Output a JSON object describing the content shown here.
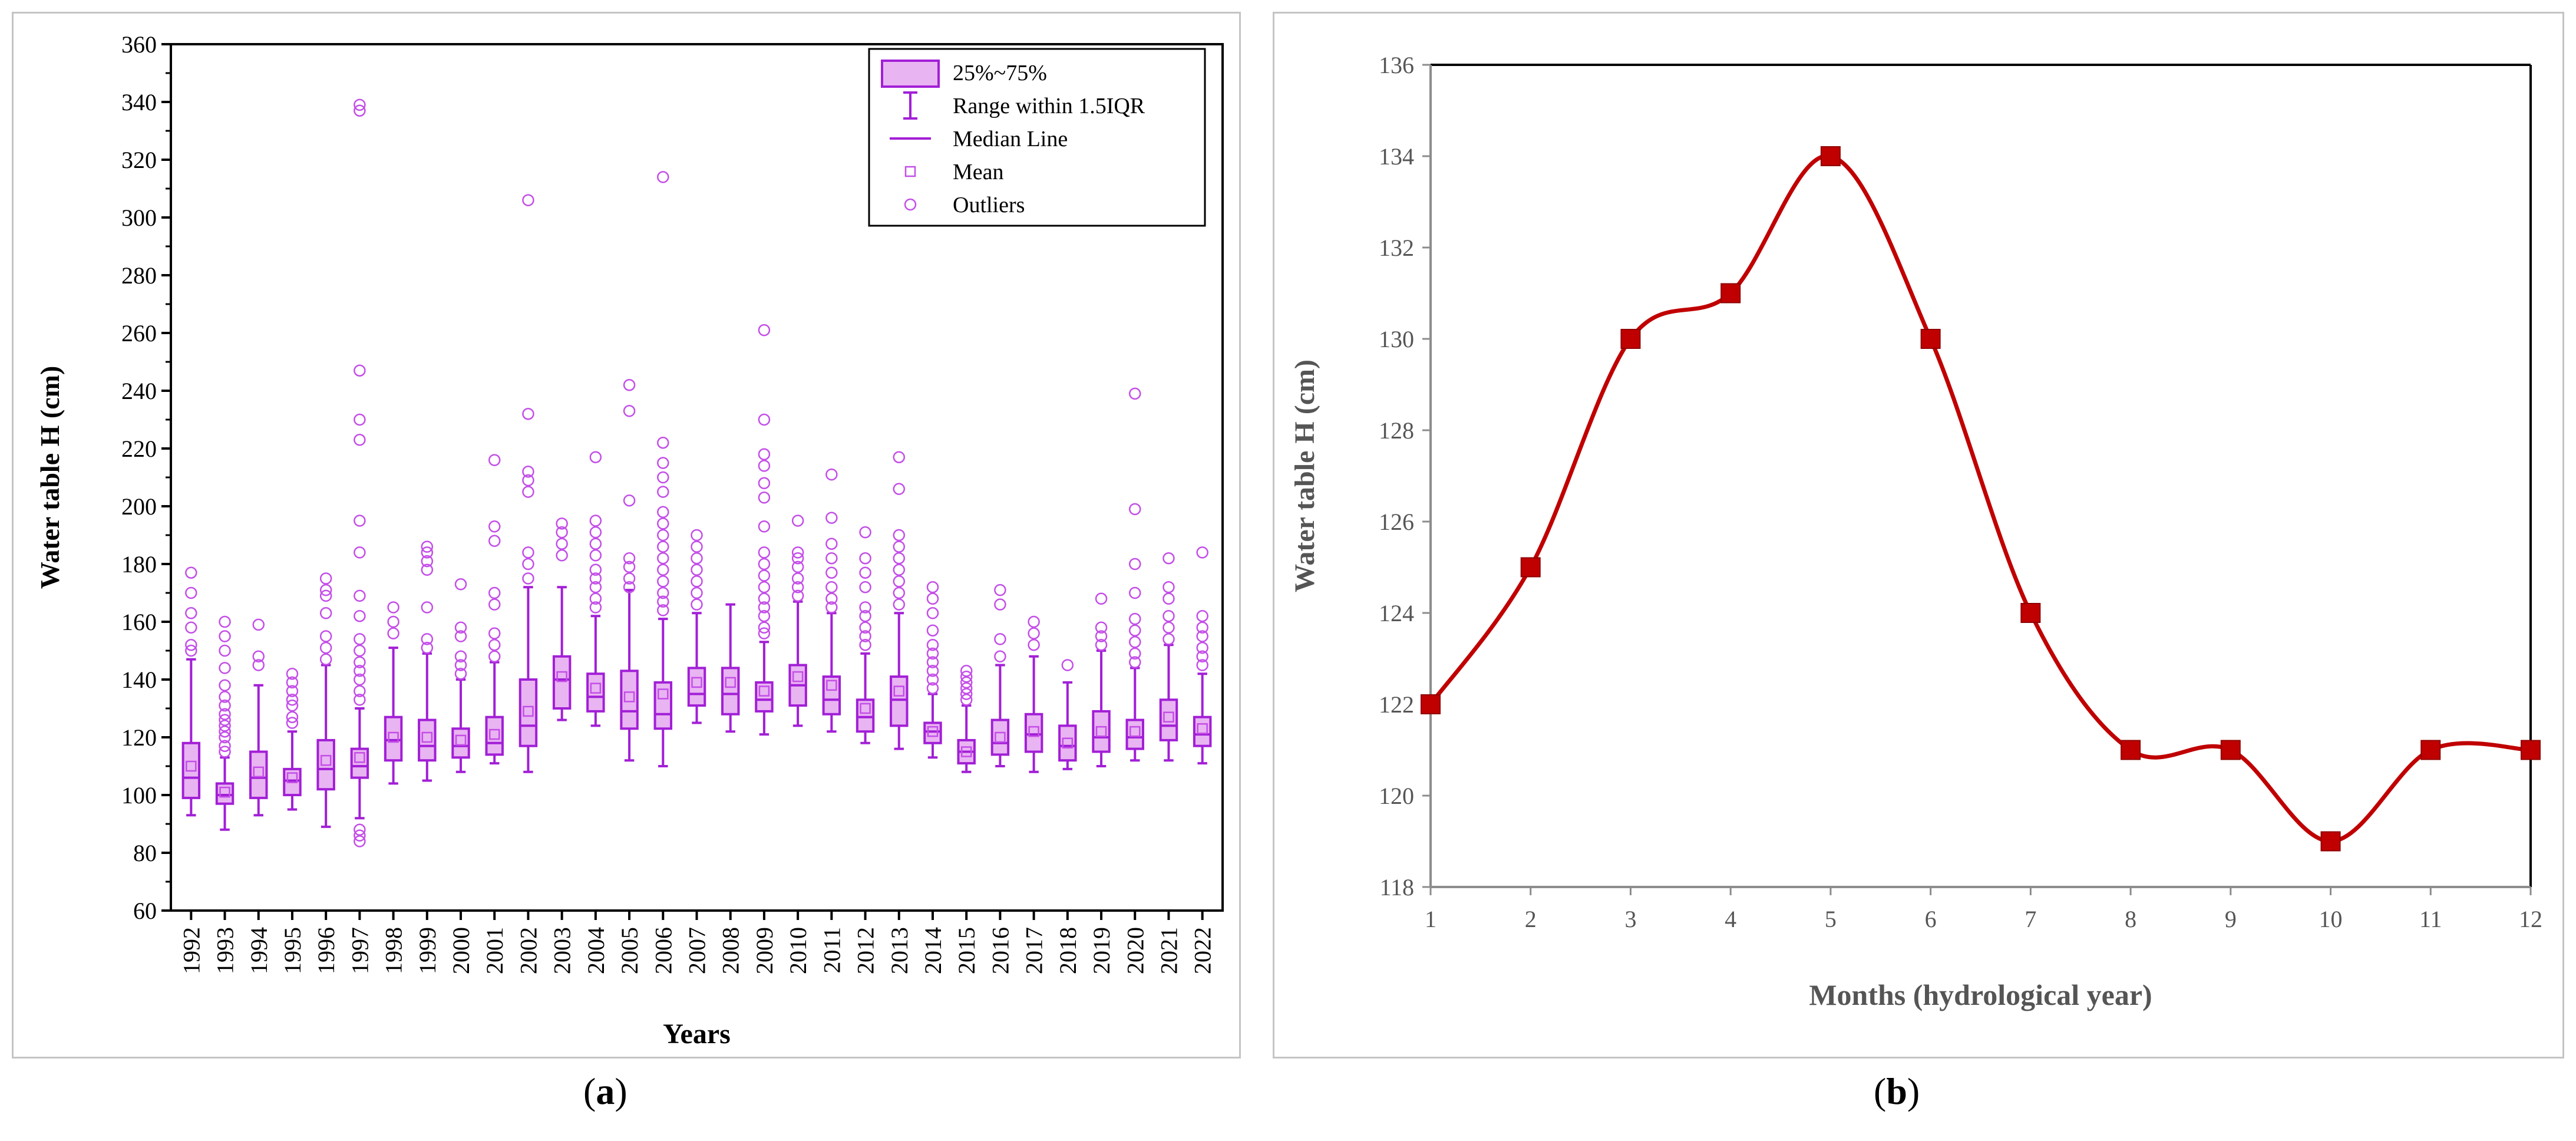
{
  "chart_data": [
    {
      "panel_label": "(a)",
      "type": "box",
      "xlabel": "Years",
      "ylabel": "Water table H (cm)",
      "ylim": [
        60,
        360
      ],
      "yticks": [
        60,
        80,
        100,
        120,
        140,
        160,
        180,
        200,
        220,
        240,
        260,
        280,
        300,
        320,
        340,
        360
      ],
      "colors": {
        "box_fill": "#e9b4f2",
        "box_edge": "#a21fd6",
        "outlier": "#c44ee8"
      },
      "legend": {
        "position": "top-right",
        "entries": [
          "25%~75%",
          "Range within 1.5IQR",
          "Median Line",
          "Mean",
          "Outliers"
        ]
      },
      "categories": [
        "1992",
        "1993",
        "1994",
        "1995",
        "1996",
        "1997",
        "1998",
        "1999",
        "2000",
        "2001",
        "2002",
        "2003",
        "2004",
        "2005",
        "2006",
        "2007",
        "2008",
        "2009",
        "2010",
        "2011",
        "2012",
        "2013",
        "2014",
        "2015",
        "2016",
        "2017",
        "2018",
        "2019",
        "2020",
        "2021",
        "2022"
      ],
      "boxes": [
        {
          "year": "1992",
          "low": 93,
          "q1": 99,
          "median": 106,
          "q3": 118,
          "high": 147,
          "mean": 110,
          "outliers": [
            150,
            152,
            158,
            163,
            170,
            177
          ]
        },
        {
          "year": "1993",
          "low": 88,
          "q1": 97,
          "median": 100,
          "q3": 104,
          "high": 113,
          "mean": 101,
          "outliers": [
            115,
            117,
            120,
            122,
            124,
            126,
            128,
            131,
            134,
            138,
            144,
            150,
            155,
            160
          ]
        },
        {
          "year": "1994",
          "low": 93,
          "q1": 99,
          "median": 106,
          "q3": 115,
          "high": 138,
          "mean": 108,
          "outliers": [
            145,
            148,
            159
          ]
        },
        {
          "year": "1995",
          "low": 95,
          "q1": 100,
          "median": 105,
          "q3": 109,
          "high": 122,
          "mean": 106,
          "outliers": [
            125,
            127,
            131,
            133,
            136,
            139,
            142
          ]
        },
        {
          "year": "1996",
          "low": 89,
          "q1": 102,
          "median": 109,
          "q3": 119,
          "high": 145,
          "mean": 112,
          "outliers": [
            147,
            151,
            155,
            163,
            169,
            171,
            175
          ]
        },
        {
          "year": "1997",
          "low": 92,
          "q1": 106,
          "median": 110,
          "q3": 116,
          "high": 130,
          "mean": 113,
          "outliers": [
            84,
            86,
            88,
            133,
            136,
            140,
            143,
            146,
            150,
            154,
            162,
            169,
            184,
            195,
            223,
            230,
            247,
            337,
            339
          ]
        },
        {
          "year": "1998",
          "low": 104,
          "q1": 112,
          "median": 119,
          "q3": 127,
          "high": 151,
          "mean": 120,
          "outliers": [
            156,
            160,
            165
          ]
        },
        {
          "year": "1999",
          "low": 105,
          "q1": 112,
          "median": 117,
          "q3": 126,
          "high": 149,
          "mean": 120,
          "outliers": [
            151,
            154,
            165,
            178,
            181,
            184,
            186
          ]
        },
        {
          "year": "2000",
          "low": 108,
          "q1": 113,
          "median": 117,
          "q3": 123,
          "high": 140,
          "mean": 119,
          "outliers": [
            142,
            145,
            148,
            155,
            158,
            173
          ]
        },
        {
          "year": "2001",
          "low": 111,
          "q1": 114,
          "median": 118,
          "q3": 127,
          "high": 146,
          "mean": 121,
          "outliers": [
            148,
            152,
            156,
            166,
            170,
            188,
            193,
            216
          ]
        },
        {
          "year": "2002",
          "low": 108,
          "q1": 117,
          "median": 124,
          "q3": 140,
          "high": 172,
          "mean": 129,
          "outliers": [
            175,
            180,
            184,
            205,
            209,
            212,
            232,
            306
          ]
        },
        {
          "year": "2003",
          "low": 126,
          "q1": 130,
          "median": 140,
          "q3": 148,
          "high": 172,
          "mean": 141,
          "outliers": [
            183,
            187,
            191,
            194
          ]
        },
        {
          "year": "2004",
          "low": 124,
          "q1": 129,
          "median": 134,
          "q3": 142,
          "high": 162,
          "mean": 137,
          "outliers": [
            165,
            168,
            172,
            175,
            178,
            183,
            187,
            191,
            195,
            217
          ]
        },
        {
          "year": "2005",
          "low": 112,
          "q1": 123,
          "median": 129,
          "q3": 143,
          "high": 171,
          "mean": 134,
          "outliers": [
            172,
            175,
            179,
            182,
            202,
            233,
            242
          ]
        },
        {
          "year": "2006",
          "low": 110,
          "q1": 123,
          "median": 128,
          "q3": 139,
          "high": 161,
          "mean": 135,
          "outliers": [
            164,
            167,
            170,
            174,
            178,
            182,
            186,
            190,
            194,
            198,
            205,
            210,
            215,
            222,
            314
          ]
        },
        {
          "year": "2007",
          "low": 125,
          "q1": 131,
          "median": 135,
          "q3": 144,
          "high": 163,
          "mean": 139,
          "outliers": [
            166,
            170,
            174,
            178,
            182,
            186,
            190
          ]
        },
        {
          "year": "2008",
          "low": 122,
          "q1": 128,
          "median": 135,
          "q3": 144,
          "high": 166,
          "mean": 139,
          "outliers": []
        },
        {
          "year": "2009",
          "low": 121,
          "q1": 129,
          "median": 133,
          "q3": 139,
          "high": 153,
          "mean": 136,
          "outliers": [
            156,
            158,
            162,
            165,
            168,
            172,
            176,
            180,
            184,
            193,
            203,
            208,
            214,
            218,
            230,
            261
          ]
        },
        {
          "year": "2010",
          "low": 124,
          "q1": 131,
          "median": 138,
          "q3": 145,
          "high": 167,
          "mean": 141,
          "outliers": [
            169,
            172,
            175,
            179,
            182,
            184,
            195
          ]
        },
        {
          "year": "2011",
          "low": 122,
          "q1": 128,
          "median": 133,
          "q3": 141,
          "high": 163,
          "mean": 138,
          "outliers": [
            165,
            168,
            172,
            177,
            182,
            187,
            196,
            211
          ]
        },
        {
          "year": "2012",
          "low": 118,
          "q1": 122,
          "median": 127,
          "q3": 133,
          "high": 149,
          "mean": 130,
          "outliers": [
            152,
            155,
            158,
            162,
            165,
            172,
            177,
            182,
            191
          ]
        },
        {
          "year": "2013",
          "low": 116,
          "q1": 124,
          "median": 133,
          "q3": 141,
          "high": 163,
          "mean": 136,
          "outliers": [
            166,
            170,
            174,
            178,
            182,
            186,
            190,
            206,
            217
          ]
        },
        {
          "year": "2014",
          "low": 113,
          "q1": 118,
          "median": 122,
          "q3": 125,
          "high": 135,
          "mean": 122,
          "outliers": [
            137,
            140,
            143,
            146,
            149,
            152,
            157,
            163,
            168,
            172
          ]
        },
        {
          "year": "2015",
          "low": 108,
          "q1": 111,
          "median": 115,
          "q3": 119,
          "high": 131,
          "mean": 115,
          "outliers": [
            133,
            135,
            137,
            139,
            141,
            143
          ]
        },
        {
          "year": "2016",
          "low": 110,
          "q1": 114,
          "median": 118,
          "q3": 126,
          "high": 145,
          "mean": 120,
          "outliers": [
            148,
            154,
            166,
            171
          ]
        },
        {
          "year": "2017",
          "low": 108,
          "q1": 115,
          "median": 121,
          "q3": 128,
          "high": 148,
          "mean": 122,
          "outliers": [
            152,
            156,
            160
          ]
        },
        {
          "year": "2018",
          "low": 109,
          "q1": 112,
          "median": 117,
          "q3": 124,
          "high": 139,
          "mean": 118,
          "outliers": [
            145
          ]
        },
        {
          "year": "2019",
          "low": 110,
          "q1": 115,
          "median": 120,
          "q3": 129,
          "high": 150,
          "mean": 122,
          "outliers": [
            152,
            155,
            158,
            168
          ]
        },
        {
          "year": "2020",
          "low": 112,
          "q1": 116,
          "median": 120,
          "q3": 126,
          "high": 144,
          "mean": 122,
          "outliers": [
            146,
            149,
            153,
            157,
            161,
            170,
            180,
            199,
            239
          ]
        },
        {
          "year": "2021",
          "low": 112,
          "q1": 119,
          "median": 124,
          "q3": 133,
          "high": 152,
          "mean": 127,
          "outliers": [
            154,
            158,
            162,
            168,
            172,
            182
          ]
        },
        {
          "year": "2022",
          "low": 111,
          "q1": 117,
          "median": 121,
          "q3": 127,
          "high": 142,
          "mean": 123,
          "outliers": [
            145,
            148,
            151,
            155,
            158,
            162,
            184
          ]
        }
      ]
    },
    {
      "panel_label": "(b)",
      "type": "line",
      "xlabel": "Months (hydrological year)",
      "ylabel": "Water table H (cm)",
      "x": [
        1,
        2,
        3,
        4,
        5,
        6,
        7,
        8,
        9,
        10,
        11,
        12
      ],
      "values": [
        122,
        125,
        130,
        131,
        134,
        130,
        124,
        121,
        121,
        119,
        121,
        121
      ],
      "ylim": [
        118,
        136
      ],
      "yticks": [
        118,
        120,
        122,
        124,
        126,
        128,
        130,
        132,
        134,
        136
      ],
      "xticks": [
        1,
        2,
        3,
        4,
        5,
        6,
        7,
        8,
        9,
        10,
        11,
        12
      ],
      "colors": {
        "line": "#c00000",
        "marker": "#c00000"
      }
    }
  ]
}
